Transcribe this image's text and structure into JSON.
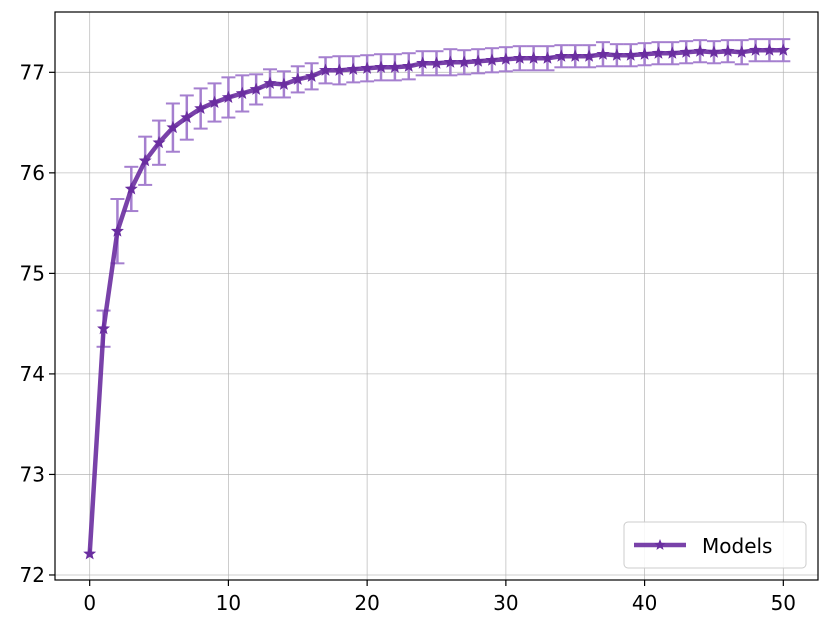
{
  "chart_data": {
    "type": "line",
    "title": "",
    "xlabel": "",
    "ylabel": "",
    "xlim": [
      -2.5,
      52.5
    ],
    "ylim": [
      71.95,
      77.6
    ],
    "x_ticks": [
      0,
      10,
      20,
      30,
      40,
      50
    ],
    "y_ticks": [
      72,
      73,
      74,
      75,
      76,
      77
    ],
    "grid": true,
    "legend_position": "lower right",
    "series": [
      {
        "name": "Models",
        "color": "#6a2ea0",
        "errorbar_color": "#a57fcf",
        "marker": "star",
        "x": [
          0,
          1,
          2,
          3,
          4,
          5,
          6,
          7,
          8,
          9,
          10,
          11,
          12,
          13,
          14,
          15,
          16,
          17,
          18,
          19,
          20,
          21,
          22,
          23,
          24,
          25,
          26,
          27,
          28,
          29,
          30,
          31,
          32,
          33,
          34,
          35,
          36,
          37,
          38,
          39,
          40,
          41,
          42,
          43,
          44,
          45,
          46,
          47,
          48,
          49,
          50
        ],
        "values": [
          72.21,
          74.45,
          75.42,
          75.84,
          76.12,
          76.3,
          76.45,
          76.55,
          76.64,
          76.7,
          76.75,
          76.79,
          76.83,
          76.89,
          76.88,
          76.93,
          76.96,
          77.02,
          77.02,
          77.03,
          77.04,
          77.05,
          77.05,
          77.06,
          77.09,
          77.09,
          77.1,
          77.1,
          77.11,
          77.12,
          77.13,
          77.14,
          77.14,
          77.14,
          77.16,
          77.16,
          77.16,
          77.18,
          77.17,
          77.17,
          77.18,
          77.19,
          77.19,
          77.2,
          77.21,
          77.2,
          77.21,
          77.2,
          77.22,
          77.22,
          77.22
        ],
        "error": [
          0.0,
          0.18,
          0.32,
          0.22,
          0.24,
          0.22,
          0.24,
          0.22,
          0.2,
          0.19,
          0.2,
          0.18,
          0.15,
          0.14,
          0.13,
          0.13,
          0.13,
          0.13,
          0.14,
          0.13,
          0.13,
          0.13,
          0.13,
          0.13,
          0.12,
          0.12,
          0.13,
          0.12,
          0.12,
          0.12,
          0.12,
          0.12,
          0.12,
          0.12,
          0.11,
          0.11,
          0.11,
          0.12,
          0.11,
          0.11,
          0.11,
          0.11,
          0.11,
          0.11,
          0.11,
          0.11,
          0.11,
          0.12,
          0.11,
          0.11,
          0.11
        ]
      }
    ]
  }
}
